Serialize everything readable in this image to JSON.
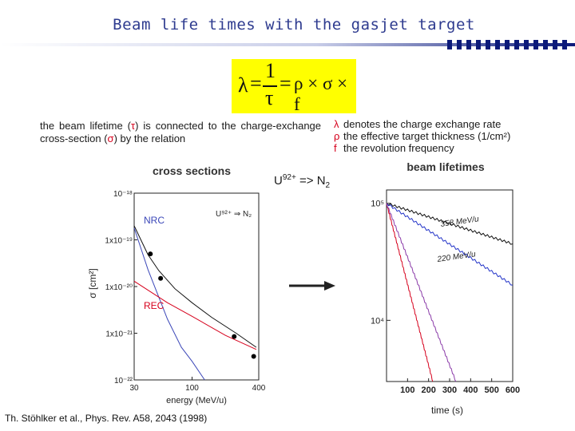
{
  "slide": {
    "title": "Beam life times with  the gasjet target",
    "formula": {
      "lhs": "λ",
      "eq1": "=",
      "num": "1",
      "den": "τ",
      "eq2": "=",
      "rhs": "ρ × σ × f"
    },
    "description": {
      "part1": "the  beam  lifetime  (",
      "tau": "τ",
      "part2": ")  is    connected  to  the  charge-exchange cross-section (",
      "sigma": "σ",
      "part3": ") by the relation"
    },
    "legend": [
      {
        "symbol": "λ",
        "text": "denotes the charge exchange rate"
      },
      {
        "symbol": "ρ",
        "text": "the effective target thickness (1/cm²)"
      },
      {
        "symbol": "f",
        "text": "the revolution frequency"
      }
    ],
    "reaction": {
      "ion": "U",
      "charge": "92+",
      "arrow": "=>",
      "target": "N",
      "target_sub": "2"
    },
    "citation": "Th. Stöhlker et al., Phys. Rev. A58, 2043 (1998)"
  },
  "chart_data": [
    {
      "type": "line",
      "title": "cross sections",
      "xlabel": "energy (MeV/u)",
      "ylabel": "σ [cm²]",
      "x_scale": "log",
      "y_scale": "log",
      "xlim": [
        30,
        400
      ],
      "ylim": [
        1e-22,
        1e-18
      ],
      "x_ticks": [
        "30",
        "100",
        "400"
      ],
      "y_ticks": [
        "10⁻²²",
        "1x10⁻²¹",
        "1x10⁻²⁰",
        "1x10⁻¹⁹",
        "10⁻¹⁸"
      ],
      "inset_label": "U⁹²⁺ ⇒ N₂",
      "series": [
        {
          "name": "NRC",
          "color": "#3b47b8",
          "x": [
            30,
            40,
            60,
            80,
            100,
            130
          ],
          "y": [
            1.8e-19,
            2.3e-20,
            2e-21,
            5e-22,
            2.5e-22,
            1e-22
          ]
        },
        {
          "name": "REC",
          "color": "#d6001c",
          "x": [
            30,
            60,
            100,
            200,
            380
          ],
          "y": [
            1.3e-20,
            4.5e-21,
            2.3e-21,
            9e-22,
            4.5e-22
          ]
        },
        {
          "name": "",
          "color": "#111111",
          "x": [
            30,
            40,
            50,
            70,
            100,
            150,
            250,
            380
          ],
          "y": [
            2e-19,
            4.8e-20,
            2.2e-20,
            9e-21,
            4.5e-21,
            2.2e-21,
            1e-21,
            5e-22
          ]
        }
      ],
      "points": {
        "x": [
          42,
          52,
          240,
          360
        ],
        "y": [
          5e-20,
          1.5e-20,
          8.5e-22,
          3.2e-22
        ]
      }
    },
    {
      "type": "line",
      "title": "beam lifetimes",
      "xlabel": "time (s)",
      "ylabel": "",
      "x_ticks": [
        "100",
        "200",
        "300",
        "400",
        "500",
        "600"
      ],
      "xlim": [
        0,
        600
      ],
      "y_scale": "log",
      "ylim": [
        3000,
        130000
      ],
      "y_ticks": [
        "10⁴",
        "10⁵"
      ],
      "series": [
        {
          "name": "358 MeV/u",
          "color": "#111111",
          "x": [
            0,
            600
          ],
          "y": [
            100000,
            45000
          ]
        },
        {
          "name": "220 MeV/u",
          "color": "#2233c8",
          "x": [
            0,
            600
          ],
          "y": [
            100000,
            20000
          ]
        },
        {
          "name": "",
          "color": "#d6001c",
          "x": [
            0,
            220
          ],
          "y": [
            100000,
            3000
          ]
        },
        {
          "name": "",
          "color": "#8a3aa8",
          "x": [
            0,
            330
          ],
          "y": [
            100000,
            3000
          ]
        }
      ],
      "annotations": [
        "358 MeV/u",
        "220 MeV/u"
      ]
    }
  ]
}
